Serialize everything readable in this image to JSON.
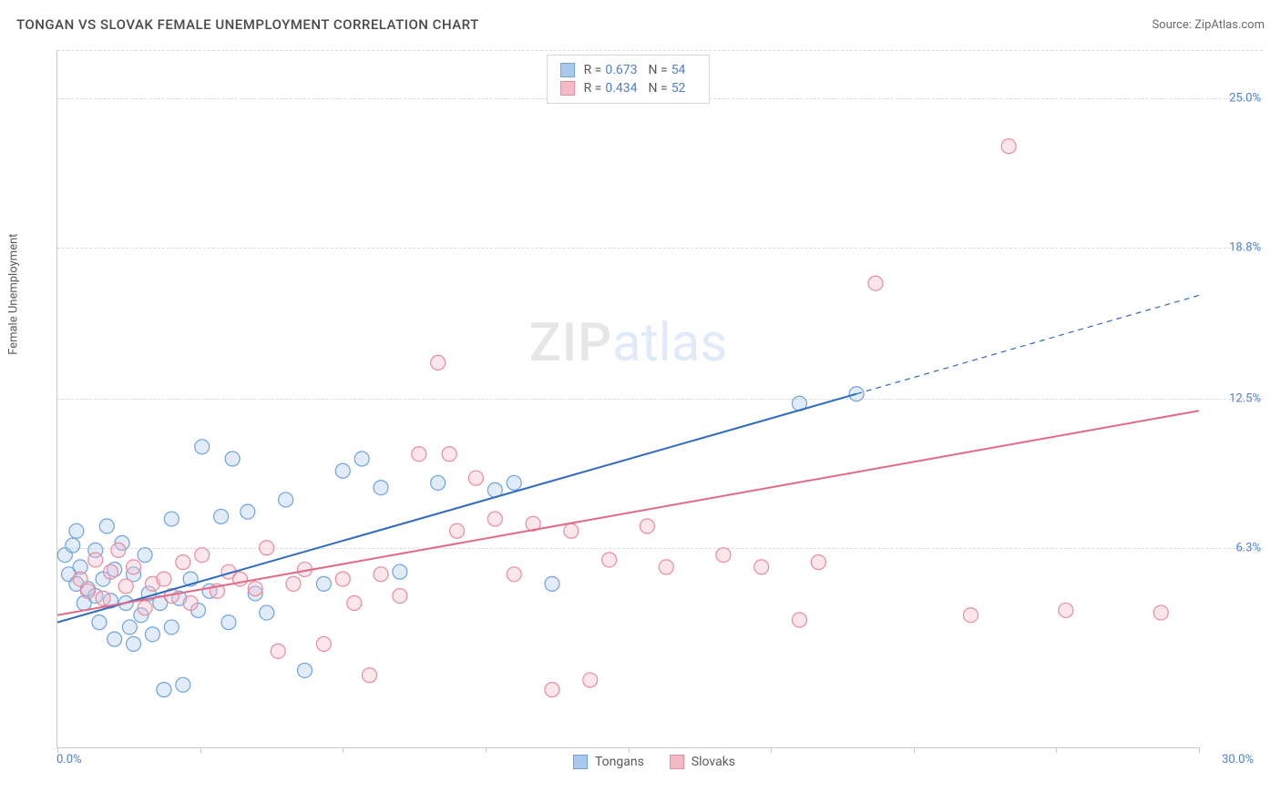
{
  "header": {
    "title": "TONGAN VS SLOVAK FEMALE UNEMPLOYMENT CORRELATION CHART",
    "source_label": "Source:",
    "source_name": "ZipAtlas.com"
  },
  "chart": {
    "type": "scatter",
    "y_axis_label": "Female Unemployment",
    "xlim": [
      0,
      30
    ],
    "ylim": [
      -2,
      27
    ],
    "x_ticks": [
      0,
      3.75,
      7.5,
      11.25,
      15,
      18.75,
      22.5,
      26.25,
      30
    ],
    "x_tick_labels_visible": {
      "0": "0.0%",
      "30": "30.0%"
    },
    "y_gridlines": [
      6.3,
      12.5,
      18.8,
      25.0
    ],
    "y_tick_labels": [
      "6.3%",
      "12.5%",
      "18.8%",
      "25.0%"
    ],
    "background_color": "#ffffff",
    "grid_color": "#dcdcdc",
    "axis_color": "#c9c9c9",
    "point_radius": 8,
    "series": [
      {
        "name": "Tongans",
        "label": "Tongans",
        "color_fill": "#a9c8ec",
        "color_stroke": "#6ea3de",
        "R": "0.673",
        "N": "54",
        "trend": {
          "x1": 0,
          "y1": 3.2,
          "x2": 21,
          "y2": 12.7,
          "dash_x1": 21,
          "dash_y1": 12.7,
          "dash_x2": 30,
          "dash_y2": 16.8,
          "line_color": "#2e6bc0",
          "line_width": 2
        },
        "points": [
          [
            0.2,
            6.0
          ],
          [
            0.3,
            5.2
          ],
          [
            0.4,
            6.4
          ],
          [
            0.5,
            4.8
          ],
          [
            0.5,
            7.0
          ],
          [
            0.6,
            5.5
          ],
          [
            0.7,
            4.0
          ],
          [
            0.8,
            4.6
          ],
          [
            1.0,
            6.2
          ],
          [
            1.0,
            4.3
          ],
          [
            1.1,
            3.2
          ],
          [
            1.2,
            5.0
          ],
          [
            1.3,
            7.2
          ],
          [
            1.4,
            4.1
          ],
          [
            1.5,
            5.4
          ],
          [
            1.5,
            2.5
          ],
          [
            1.7,
            6.5
          ],
          [
            1.8,
            4.0
          ],
          [
            1.9,
            3.0
          ],
          [
            2.0,
            5.2
          ],
          [
            2.0,
            2.3
          ],
          [
            2.2,
            3.5
          ],
          [
            2.3,
            6.0
          ],
          [
            2.4,
            4.4
          ],
          [
            2.5,
            2.7
          ],
          [
            2.7,
            4.0
          ],
          [
            2.8,
            0.4
          ],
          [
            3.0,
            7.5
          ],
          [
            3.0,
            3.0
          ],
          [
            3.2,
            4.2
          ],
          [
            3.3,
            0.6
          ],
          [
            3.5,
            5.0
          ],
          [
            3.7,
            3.7
          ],
          [
            3.8,
            10.5
          ],
          [
            4.0,
            4.5
          ],
          [
            4.3,
            7.6
          ],
          [
            4.5,
            3.2
          ],
          [
            4.6,
            10.0
          ],
          [
            5.0,
            7.8
          ],
          [
            5.2,
            4.4
          ],
          [
            5.5,
            3.6
          ],
          [
            6.0,
            8.3
          ],
          [
            6.5,
            1.2
          ],
          [
            7.0,
            4.8
          ],
          [
            7.5,
            9.5
          ],
          [
            8.0,
            10.0
          ],
          [
            8.5,
            8.8
          ],
          [
            9.0,
            5.3
          ],
          [
            10.0,
            9.0
          ],
          [
            11.5,
            8.7
          ],
          [
            12.0,
            9.0
          ],
          [
            13.0,
            4.8
          ],
          [
            19.5,
            12.3
          ],
          [
            21.0,
            12.7
          ]
        ]
      },
      {
        "name": "Slovaks",
        "label": "Slovaks",
        "color_fill": "#f3b9c5",
        "color_stroke": "#e98ba0",
        "R": "0.434",
        "N": "52",
        "trend": {
          "x1": 0,
          "y1": 3.5,
          "x2": 30,
          "y2": 12.0,
          "line_color": "#e26a88",
          "line_width": 2
        },
        "points": [
          [
            0.6,
            5.0
          ],
          [
            0.8,
            4.5
          ],
          [
            1.0,
            5.8
          ],
          [
            1.2,
            4.2
          ],
          [
            1.4,
            5.3
          ],
          [
            1.6,
            6.2
          ],
          [
            1.8,
            4.7
          ],
          [
            2.0,
            5.5
          ],
          [
            2.3,
            3.8
          ],
          [
            2.5,
            4.8
          ],
          [
            2.8,
            5.0
          ],
          [
            3.0,
            4.3
          ],
          [
            3.3,
            5.7
          ],
          [
            3.5,
            4.0
          ],
          [
            3.8,
            6.0
          ],
          [
            4.2,
            4.5
          ],
          [
            4.5,
            5.3
          ],
          [
            4.8,
            5.0
          ],
          [
            5.2,
            4.6
          ],
          [
            5.5,
            6.3
          ],
          [
            5.8,
            2.0
          ],
          [
            6.2,
            4.8
          ],
          [
            6.5,
            5.4
          ],
          [
            7.0,
            2.3
          ],
          [
            7.5,
            5.0
          ],
          [
            7.8,
            4.0
          ],
          [
            8.2,
            1.0
          ],
          [
            8.5,
            5.2
          ],
          [
            9.0,
            4.3
          ],
          [
            9.5,
            10.2
          ],
          [
            10.0,
            14.0
          ],
          [
            10.3,
            10.2
          ],
          [
            10.5,
            7.0
          ],
          [
            11.0,
            9.2
          ],
          [
            11.5,
            7.5
          ],
          [
            12.0,
            5.2
          ],
          [
            12.5,
            7.3
          ],
          [
            13.0,
            0.4
          ],
          [
            13.5,
            7.0
          ],
          [
            14.0,
            0.8
          ],
          [
            14.5,
            5.8
          ],
          [
            15.5,
            7.2
          ],
          [
            16.0,
            5.5
          ],
          [
            17.5,
            6.0
          ],
          [
            18.5,
            5.5
          ],
          [
            19.5,
            3.3
          ],
          [
            20.0,
            5.7
          ],
          [
            21.5,
            17.3
          ],
          [
            24.0,
            3.5
          ],
          [
            25.0,
            23.0
          ],
          [
            26.5,
            3.7
          ],
          [
            29.0,
            3.6
          ]
        ]
      }
    ],
    "watermark": {
      "part1": "ZIP",
      "part2": "atlas"
    },
    "legend_top_stat_labels": {
      "R": "R =",
      "N": "N ="
    },
    "title_fontsize": 15,
    "label_fontsize": 13,
    "tick_label_color": "#4f7fce"
  }
}
